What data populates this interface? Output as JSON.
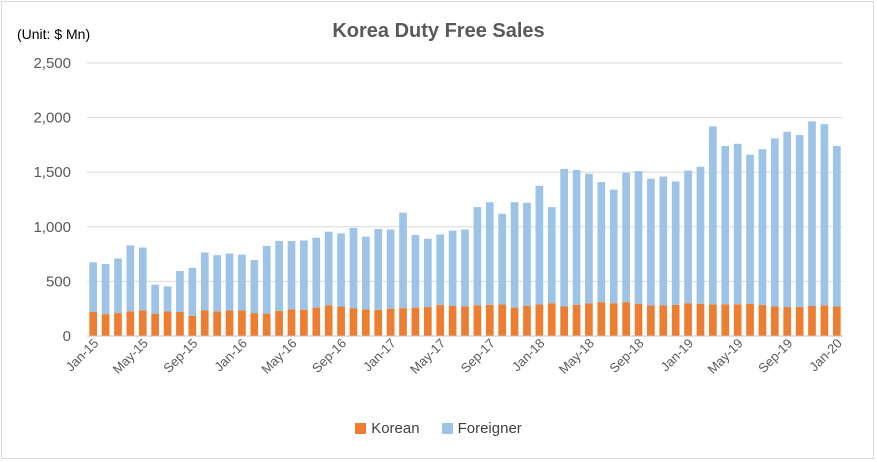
{
  "chart_data": {
    "type": "bar",
    "stacked": true,
    "title": "Korea Duty Free Sales",
    "unit_label": "(Unit: $ Mn)",
    "ylim": [
      0,
      2500
    ],
    "yticks": [
      0,
      500,
      1000,
      1500,
      2000,
      2500
    ],
    "ytick_labels": [
      "0",
      "500",
      "1,000",
      "1,500",
      "2,000",
      "2,500"
    ],
    "grid": true,
    "legend_position": "bottom",
    "categories": [
      "Jan-15",
      "Feb-15",
      "Mar-15",
      "Apr-15",
      "May-15",
      "Jun-15",
      "Jul-15",
      "Aug-15",
      "Sep-15",
      "Oct-15",
      "Nov-15",
      "Dec-15",
      "Jan-16",
      "Feb-16",
      "Mar-16",
      "Apr-16",
      "May-16",
      "Jun-16",
      "Jul-16",
      "Aug-16",
      "Sep-16",
      "Oct-16",
      "Nov-16",
      "Dec-16",
      "Jan-17",
      "Feb-17",
      "Mar-17",
      "Apr-17",
      "May-17",
      "Jun-17",
      "Jul-17",
      "Aug-17",
      "Sep-17",
      "Oct-17",
      "Nov-17",
      "Dec-17",
      "Jan-18",
      "Feb-18",
      "Mar-18",
      "Apr-18",
      "May-18",
      "Jun-18",
      "Jul-18",
      "Aug-18",
      "Sep-18",
      "Oct-18",
      "Nov-18",
      "Dec-18",
      "Jan-19",
      "Feb-19",
      "Mar-19",
      "Apr-19",
      "May-19",
      "Jun-19",
      "Jul-19",
      "Aug-19",
      "Sep-19",
      "Oct-19",
      "Nov-19",
      "Dec-19",
      "Jan-20"
    ],
    "xtick_labels": [
      "Jan-15",
      "May-15",
      "Sep-15",
      "Jan-16",
      "May-16",
      "Sep-16",
      "Jan-17",
      "May-17",
      "Sep-17",
      "Jan-18",
      "May-18",
      "Sep-18",
      "Jan-19",
      "May-19",
      "Sep-19",
      "Jan-20"
    ],
    "series": [
      {
        "name": "Korean",
        "color": "#ed7d31",
        "values": [
          220,
          200,
          210,
          225,
          235,
          205,
          225,
          220,
          185,
          235,
          225,
          235,
          235,
          210,
          205,
          230,
          245,
          240,
          260,
          280,
          270,
          255,
          245,
          240,
          250,
          255,
          260,
          265,
          285,
          275,
          270,
          280,
          285,
          290,
          260,
          275,
          290,
          300,
          270,
          285,
          300,
          310,
          300,
          310,
          295,
          280,
          280,
          285,
          300,
          295,
          290,
          290,
          290,
          295,
          285,
          270,
          265,
          265,
          275,
          280,
          270
        ]
      },
      {
        "name": "Foreigner",
        "color": "#9dc3e6",
        "values": [
          455,
          460,
          500,
          605,
          575,
          265,
          230,
          375,
          440,
          530,
          515,
          520,
          510,
          485,
          620,
          640,
          625,
          635,
          640,
          675,
          670,
          735,
          665,
          740,
          725,
          875,
          665,
          625,
          645,
          690,
          705,
          900,
          940,
          830,
          965,
          945,
          1085,
          880,
          1260,
          1235,
          1185,
          1100,
          1040,
          1185,
          1215,
          1160,
          1180,
          1130,
          1215,
          1255,
          1630,
          1450,
          1470,
          1365,
          1425,
          1540,
          1605,
          1575,
          1690,
          1660,
          1470
        ]
      }
    ]
  }
}
